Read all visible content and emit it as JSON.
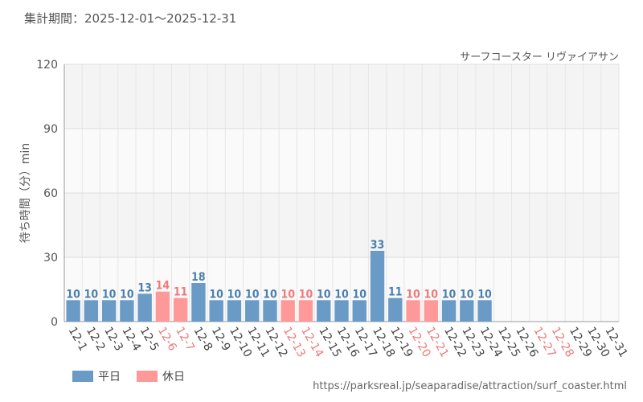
{
  "header": {
    "period": "集計期間：2025-12-01～2025-12-31",
    "attraction": "サーフコースター リヴァイアサン"
  },
  "footer": {
    "source": "https://parksreal.jp/seaparadise/attraction/surf_coaster.html"
  },
  "colors": {
    "weekday": "#6a9bc6",
    "holiday": "#ff9999",
    "weekday_text": "#4a7fae",
    "holiday_text": "#f07878"
  },
  "chart_data": {
    "type": "bar",
    "title": "サーフコースター リヴァイアサン",
    "xlabel": "",
    "ylabel": "待ち時間（分）min",
    "ylim": [
      0,
      120
    ],
    "yticks": [
      0,
      30,
      60,
      90,
      120
    ],
    "legend": [
      {
        "key": "weekday",
        "label": "平日"
      },
      {
        "key": "holiday",
        "label": "休日"
      }
    ],
    "categories": [
      "12-1",
      "12-2",
      "12-3",
      "12-4",
      "12-5",
      "12-6",
      "12-7",
      "12-8",
      "12-9",
      "12-10",
      "12-11",
      "12-12",
      "12-13",
      "12-14",
      "12-15",
      "12-16",
      "12-17",
      "12-18",
      "12-19",
      "12-20",
      "12-21",
      "12-22",
      "12-23",
      "12-24",
      "12-25",
      "12-26",
      "12-27",
      "12-28",
      "12-29",
      "12-30",
      "12-31"
    ],
    "day_type": [
      "weekday",
      "weekday",
      "weekday",
      "weekday",
      "weekday",
      "holiday",
      "holiday",
      "weekday",
      "weekday",
      "weekday",
      "weekday",
      "weekday",
      "holiday",
      "holiday",
      "weekday",
      "weekday",
      "weekday",
      "weekday",
      "weekday",
      "holiday",
      "holiday",
      "weekday",
      "weekday",
      "weekday",
      "weekday",
      "weekday",
      "holiday",
      "holiday",
      "weekday",
      "weekday",
      "weekday"
    ],
    "values": [
      10,
      10,
      10,
      10,
      13,
      14,
      11,
      18,
      10,
      10,
      10,
      10,
      10,
      10,
      10,
      10,
      10,
      33,
      11,
      10,
      10,
      10,
      10,
      10,
      null,
      null,
      null,
      null,
      null,
      null,
      null
    ]
  }
}
